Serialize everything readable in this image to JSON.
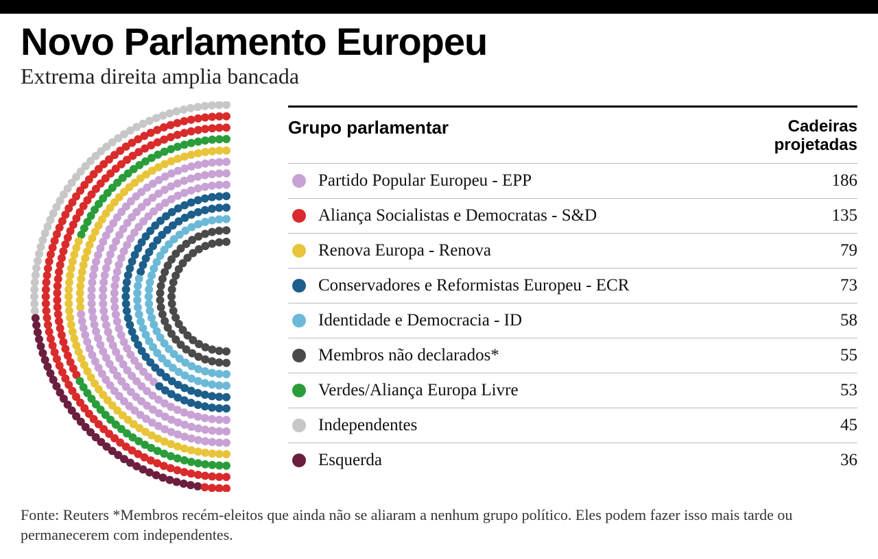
{
  "title": "Novo Parlamento Europeu",
  "subtitle": "Extrema direita amplia bancada",
  "table": {
    "col1_header": "Grupo parlamentar",
    "col2_header": "Cadeiras projetadas",
    "rows": [
      {
        "label": "Partido Popular Europeu - EPP",
        "value": "186",
        "color": "#c8a2d4"
      },
      {
        "label": "Aliança Socialistas e Democratas - S&D",
        "value": "135",
        "color": "#d92b2b"
      },
      {
        "label": "Renova Europa - Renova",
        "value": "79",
        "color": "#e8c43a"
      },
      {
        "label": "Conservadores e Reformistas Europeu - ECR",
        "value": "73",
        "color": "#1d5e8a"
      },
      {
        "label": "Identidade e Democracia - ID",
        "value": "58",
        "color": "#6bb9d6"
      },
      {
        "label": "Membros não declarados*",
        "value": "55",
        "color": "#4a4a4a"
      },
      {
        "label": "Verdes/Aliança Europa Livre",
        "value": "53",
        "color": "#2a9d3a"
      },
      {
        "label": "Independentes",
        "value": "45",
        "color": "#c7c7c7"
      },
      {
        "label": "Esquerda",
        "value": "36",
        "color": "#6b1e3e"
      }
    ]
  },
  "hemicycle": {
    "type": "hemicycle",
    "total_seats": 720,
    "dot_radius": 6,
    "ring_count": 13,
    "inner_radius": 80,
    "outer_radius": 280,
    "rotation_offset_deg": 100,
    "background": "#ffffff",
    "seat_order_comment": "counter-clockwise from top-left outer arc",
    "groups_order": [
      {
        "color": "#c7c7c7",
        "seats": 45
      },
      {
        "color": "#6b1e3e",
        "seats": 36
      },
      {
        "color": "#d92b2b",
        "seats": 135
      },
      {
        "color": "#2a9d3a",
        "seats": 53
      },
      {
        "color": "#e8c43a",
        "seats": 79
      },
      {
        "color": "#c8a2d4",
        "seats": 186
      },
      {
        "color": "#1d5e8a",
        "seats": 73
      },
      {
        "color": "#6bb9d6",
        "seats": 58
      },
      {
        "color": "#4a4a4a",
        "seats": 55
      }
    ]
  },
  "footnote": "Fonte:  Reuters *Membros recém-eleitos que ainda não se aliaram a nenhum grupo político. Eles podem fazer isso mais tarde ou permanecerem com independentes."
}
